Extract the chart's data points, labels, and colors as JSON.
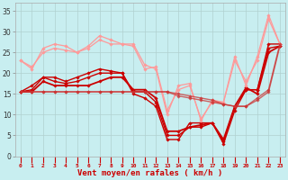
{
  "xlabel": "Vent moyen/en rafales ( km/h )",
  "background_color": "#c8eef0",
  "grid_color": "#b0d0d0",
  "x": [
    0,
    1,
    2,
    3,
    4,
    5,
    6,
    7,
    8,
    9,
    10,
    11,
    12,
    13,
    14,
    15,
    16,
    17,
    18,
    19,
    20,
    21,
    22,
    23
  ],
  "series": [
    {
      "y": [
        15.5,
        17,
        19,
        19,
        18,
        19,
        20,
        21,
        20.5,
        20,
        15,
        14,
        12,
        4,
        4,
        8,
        8,
        8,
        3,
        11,
        16,
        16,
        27,
        27
      ],
      "color": "#cc0000",
      "lw": 1.0,
      "marker": "D",
      "ms": 1.8,
      "alpha": 1.0
    },
    {
      "y": [
        15.5,
        16,
        19,
        18,
        17.5,
        18,
        19,
        20,
        20,
        20,
        15.5,
        15.5,
        13,
        5,
        5,
        7,
        7,
        8,
        3.5,
        12,
        16,
        16,
        26,
        26.5
      ],
      "color": "#cc0000",
      "lw": 1.0,
      "marker": "D",
      "ms": 1.8,
      "alpha": 1.0
    },
    {
      "y": [
        15.5,
        15.5,
        18,
        17,
        17,
        17,
        17,
        18,
        19,
        19,
        16,
        16,
        14,
        6,
        6,
        7,
        7.5,
        8,
        4,
        12,
        16.5,
        15,
        25,
        26.5
      ],
      "color": "#cc0000",
      "lw": 1.3,
      "marker": "D",
      "ms": 1.8,
      "alpha": 1.0
    },
    {
      "y": [
        23,
        21,
        26,
        27,
        26.5,
        25,
        26.5,
        29,
        28,
        27,
        27,
        22,
        21,
        10,
        17,
        17.5,
        8.5,
        13.5,
        13,
        24,
        17,
        24,
        34,
        27
      ],
      "color": "#ff9999",
      "lw": 0.9,
      "marker": "D",
      "ms": 1.8,
      "alpha": 1.0
    },
    {
      "y": [
        23,
        21.5,
        25,
        26,
        25.5,
        25,
        26,
        28,
        27,
        27,
        26.5,
        21,
        21.5,
        11,
        16,
        17,
        9,
        13,
        13,
        23,
        18,
        23,
        33,
        27
      ],
      "color": "#ff9999",
      "lw": 0.9,
      "marker": "D",
      "ms": 1.8,
      "alpha": 1.0
    },
    {
      "y": [
        15.5,
        15.5,
        15.5,
        15.5,
        15.5,
        15.5,
        15.5,
        15.5,
        15.5,
        15.5,
        15.5,
        15.5,
        15.5,
        15.5,
        14.5,
        14,
        13.5,
        13,
        12.5,
        12,
        12,
        14,
        16,
        27
      ],
      "color": "#cc3333",
      "lw": 1.0,
      "marker": "D",
      "ms": 1.8,
      "alpha": 0.75
    },
    {
      "y": [
        15.5,
        15.5,
        15.5,
        15.5,
        15.5,
        15.5,
        15.5,
        15.5,
        15.5,
        15.5,
        15.5,
        15.5,
        15.5,
        15.5,
        15,
        14.5,
        14,
        13.5,
        12.5,
        12,
        12,
        13.5,
        15.5,
        26.5
      ],
      "color": "#cc3333",
      "lw": 1.0,
      "marker": "D",
      "ms": 1.8,
      "alpha": 0.75
    }
  ],
  "ylim": [
    0,
    37
  ],
  "xlim": [
    -0.5,
    23.5
  ],
  "yticks": [
    0,
    5,
    10,
    15,
    20,
    25,
    30,
    35
  ],
  "xticks": [
    0,
    1,
    2,
    3,
    4,
    5,
    6,
    7,
    8,
    9,
    10,
    11,
    12,
    13,
    14,
    15,
    16,
    17,
    18,
    19,
    20,
    21,
    22,
    23
  ]
}
